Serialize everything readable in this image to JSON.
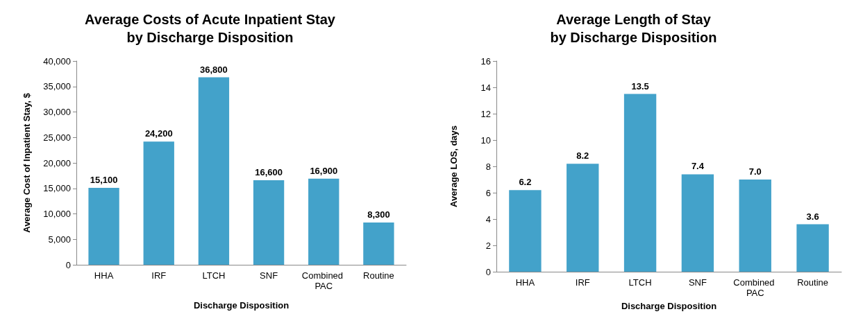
{
  "chart_data": [
    {
      "type": "bar",
      "title": "Average Costs of Acute Inpatient Stay\nby Discharge Disposition",
      "xlabel": "Discharge Disposition",
      "ylabel": "Average Cost of Inpatient Stay, $",
      "categories": [
        "HHA",
        "IRF",
        "LTCH",
        "SNF",
        "Combined PAC",
        "Routine"
      ],
      "values": [
        15100,
        24200,
        36800,
        16600,
        16900,
        8300
      ],
      "value_labels": [
        "15,100",
        "24,200",
        "36,800",
        "16,600",
        "16,900",
        "8,300"
      ],
      "color": "#43a2ca",
      "ylim": [
        0,
        40000
      ],
      "yticks": [
        {
          "value": 0,
          "label": "0"
        },
        {
          "value": 5000,
          "label": "5,000"
        },
        {
          "value": 10000,
          "label": "10,000"
        },
        {
          "value": 15000,
          "label": "15,000"
        },
        {
          "value": 20000,
          "label": "20,000"
        },
        {
          "value": 25000,
          "label": "25,000"
        },
        {
          "value": 30000,
          "label": "30,000"
        },
        {
          "value": 35000,
          "label": "35,000"
        },
        {
          "value": 40000,
          "label": "40,000"
        }
      ],
      "grid": false
    },
    {
      "type": "bar",
      "title": "Average Length of Stay\nby Discharge Disposition",
      "xlabel": "Discharge Disposition",
      "ylabel": "Average LOS, days",
      "categories": [
        "HHA",
        "IRF",
        "LTCH",
        "SNF",
        "Combined PAC",
        "Routine"
      ],
      "values": [
        6.2,
        8.2,
        13.5,
        7.4,
        7.0,
        3.6
      ],
      "value_labels": [
        "6.2",
        "8.2",
        "13.5",
        "7.4",
        "7.0",
        "3.6"
      ],
      "color": "#43a2ca",
      "ylim": [
        0,
        16
      ],
      "yticks": [
        0,
        2,
        4,
        6,
        8,
        10,
        12,
        14,
        16
      ],
      "grid": false
    }
  ]
}
